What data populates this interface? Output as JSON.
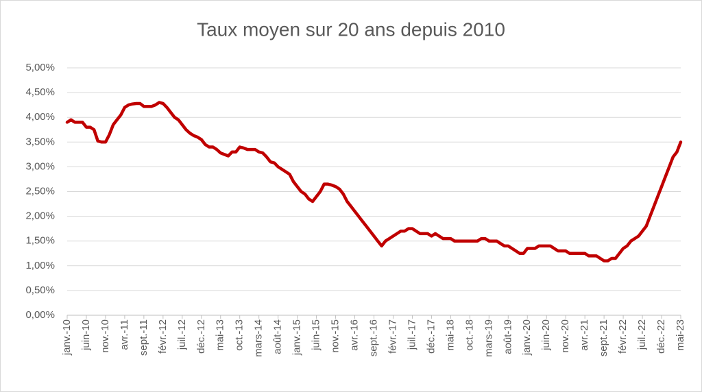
{
  "chart_data": {
    "type": "line",
    "title": "Taux moyen sur 20 ans depuis 2010",
    "categories": [
      "janv.-10",
      null,
      null,
      null,
      null,
      "juin-10",
      null,
      null,
      null,
      null,
      "nov.-10",
      null,
      null,
      null,
      null,
      "avr.-11",
      null,
      null,
      null,
      null,
      "sept.-11",
      null,
      null,
      null,
      null,
      "févr.-12",
      null,
      null,
      null,
      null,
      "juil.-12",
      null,
      null,
      null,
      null,
      "déc.-12",
      null,
      null,
      null,
      null,
      "mai-13",
      null,
      null,
      null,
      null,
      "oct.-13",
      null,
      null,
      null,
      null,
      "mars-14",
      null,
      null,
      null,
      null,
      "août-14",
      null,
      null,
      null,
      null,
      "janv.-15",
      null,
      null,
      null,
      null,
      "juin-15",
      null,
      null,
      null,
      null,
      "nov.-15",
      null,
      null,
      null,
      null,
      "avr.-16",
      null,
      null,
      null,
      null,
      "sept.-16",
      null,
      null,
      null,
      null,
      "févr.-17",
      null,
      null,
      null,
      null,
      "juil.-17",
      null,
      null,
      null,
      null,
      "déc.-17",
      null,
      null,
      null,
      null,
      "mai-18",
      null,
      null,
      null,
      null,
      "oct.-18",
      null,
      null,
      null,
      null,
      "mars-19",
      null,
      null,
      null,
      null,
      "août-19",
      null,
      null,
      null,
      null,
      "janv.-20",
      null,
      null,
      null,
      null,
      "juin-20",
      null,
      null,
      null,
      null,
      "nov.-20",
      null,
      null,
      null,
      null,
      "avr.-21",
      null,
      null,
      null,
      null,
      "sept.-21",
      null,
      null,
      null,
      null,
      "févr.-22",
      null,
      null,
      null,
      null,
      "juil.-22",
      null,
      null,
      null,
      null,
      "déc.-22",
      null,
      null,
      null,
      null,
      "mai-23"
    ],
    "values": [
      3.9,
      3.95,
      3.9,
      3.9,
      3.9,
      3.8,
      3.8,
      3.75,
      3.52,
      3.5,
      3.5,
      3.65,
      3.85,
      3.95,
      4.05,
      4.2,
      4.25,
      4.27,
      4.28,
      4.28,
      4.22,
      4.22,
      4.22,
      4.25,
      4.3,
      4.28,
      4.2,
      4.1,
      4.0,
      3.95,
      3.85,
      3.75,
      3.68,
      3.63,
      3.6,
      3.55,
      3.45,
      3.4,
      3.4,
      3.35,
      3.28,
      3.25,
      3.22,
      3.3,
      3.3,
      3.4,
      3.38,
      3.35,
      3.35,
      3.35,
      3.3,
      3.28,
      3.2,
      3.1,
      3.08,
      3.0,
      2.95,
      2.9,
      2.85,
      2.7,
      2.6,
      2.5,
      2.45,
      2.35,
      2.3,
      2.4,
      2.5,
      2.65,
      2.65,
      2.63,
      2.6,
      2.55,
      2.45,
      2.3,
      2.2,
      2.1,
      2.0,
      1.9,
      1.8,
      1.7,
      1.6,
      1.5,
      1.4,
      1.5,
      1.55,
      1.6,
      1.65,
      1.7,
      1.7,
      1.75,
      1.75,
      1.7,
      1.65,
      1.65,
      1.65,
      1.6,
      1.65,
      1.6,
      1.55,
      1.55,
      1.55,
      1.5,
      1.5,
      1.5,
      1.5,
      1.5,
      1.5,
      1.5,
      1.55,
      1.55,
      1.5,
      1.5,
      1.5,
      1.45,
      1.4,
      1.4,
      1.35,
      1.3,
      1.25,
      1.25,
      1.35,
      1.35,
      1.35,
      1.4,
      1.4,
      1.4,
      1.4,
      1.35,
      1.3,
      1.3,
      1.3,
      1.25,
      1.25,
      1.25,
      1.25,
      1.25,
      1.2,
      1.2,
      1.2,
      1.15,
      1.1,
      1.1,
      1.15,
      1.15,
      1.25,
      1.35,
      1.4,
      1.5,
      1.55,
      1.6,
      1.7,
      1.8,
      2.0,
      2.2,
      2.4,
      2.6,
      2.8,
      3.0,
      3.2,
      3.3,
      3.5
    ],
    "color": "#c00000",
    "ylim": [
      0,
      5
    ],
    "yticks": [
      {
        "value": 0,
        "label": "0,00%"
      },
      {
        "value": 0.5,
        "label": "0,50%"
      },
      {
        "value": 1,
        "label": "1,00%"
      },
      {
        "value": 1.5,
        "label": "1,50%"
      },
      {
        "value": 2,
        "label": "2,00%"
      },
      {
        "value": 2.5,
        "label": "2,50%"
      },
      {
        "value": 3,
        "label": "3,00%"
      },
      {
        "value": 3.5,
        "label": "3,50%"
      },
      {
        "value": 4,
        "label": "4,00%"
      },
      {
        "value": 4.5,
        "label": "4,50%"
      },
      {
        "value": 5,
        "label": "5,00%"
      }
    ],
    "grid": true
  }
}
